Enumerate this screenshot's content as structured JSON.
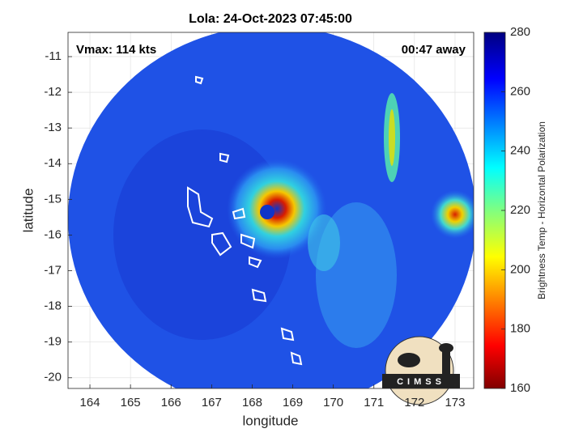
{
  "chart_data": {
    "type": "map",
    "title": "Lola: 24-Oct-2023 07:45:00",
    "annotations": [
      "Vmax: 114 kts",
      "00:47 away"
    ],
    "xlabel": "longitude",
    "ylabel": "latitude",
    "xlim": [
      163.46,
      173.46
    ],
    "ylim": [
      -20.3,
      -10.32
    ],
    "xticks": [
      164,
      165,
      166,
      167,
      168,
      169,
      170,
      171,
      172,
      173
    ],
    "yticks": [
      -20,
      -19,
      -18,
      -17,
      -16,
      -15,
      -14,
      -13,
      -12,
      -11
    ],
    "grid": true,
    "colorbar": {
      "label": "Brightness Temp - Horizontal Polarization",
      "lim": [
        160,
        280
      ],
      "ticks": [
        160,
        180,
        200,
        220,
        240,
        260,
        280
      ],
      "colormap": "jet"
    },
    "logo_text": "CIMSS"
  }
}
